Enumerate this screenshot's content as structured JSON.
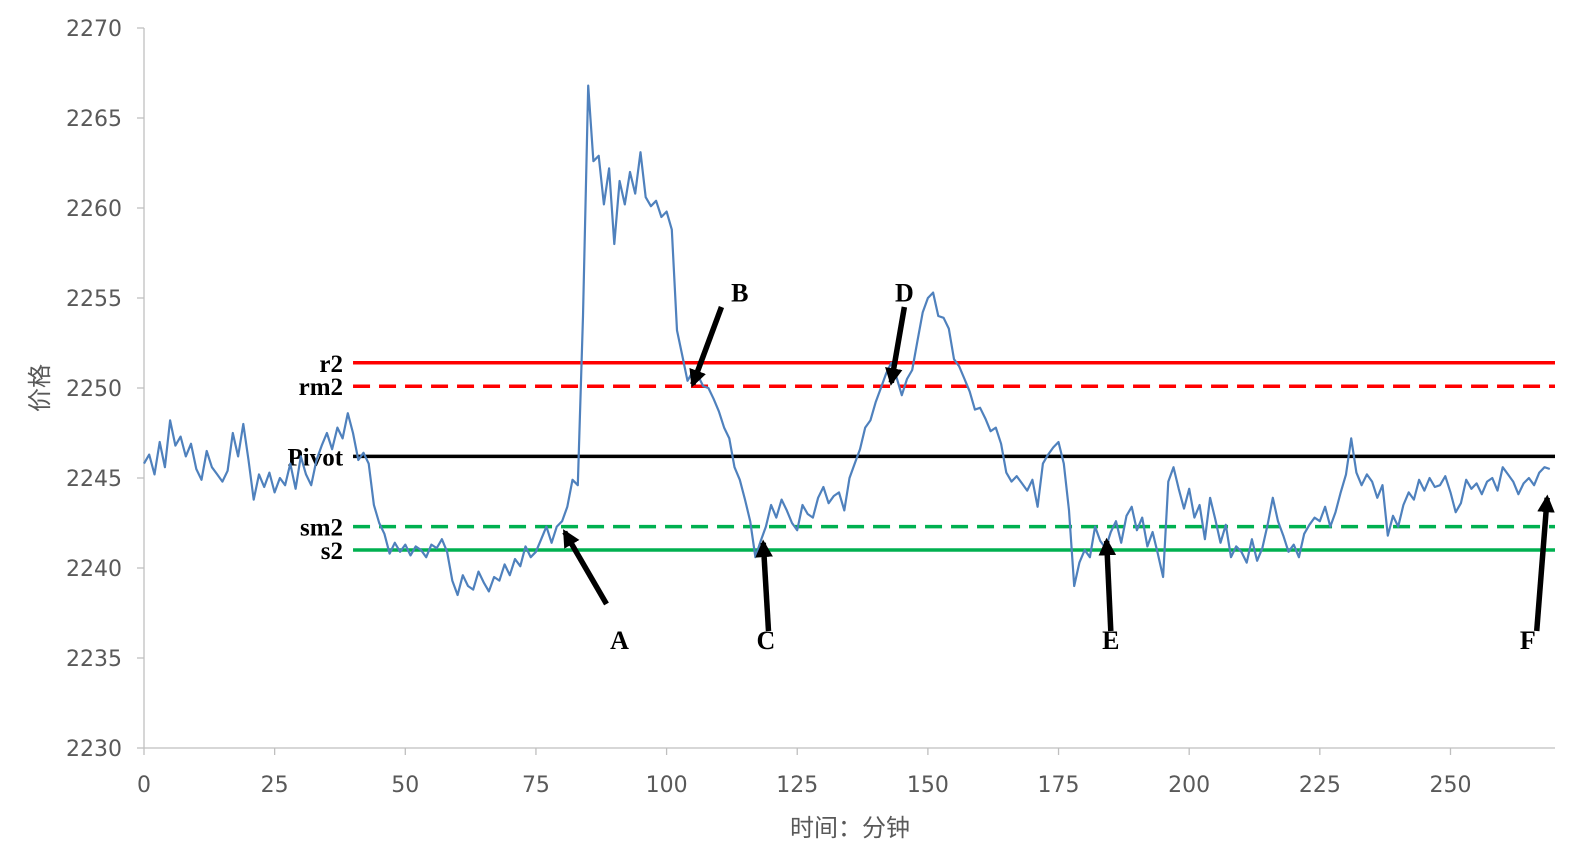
{
  "chart_data": {
    "type": "line",
    "title": "",
    "xlabel": "时间：分钟",
    "ylabel": "价格",
    "xlim": [
      0,
      270
    ],
    "ylim": [
      2230,
      2270
    ],
    "xticks": [
      0,
      25,
      50,
      75,
      100,
      125,
      150,
      175,
      200,
      225,
      250
    ],
    "xtick_labels": [
      "0",
      "25",
      "50",
      "75",
      "100",
      "125",
      "150",
      "175",
      "200",
      "225",
      "250"
    ],
    "yticks": [
      2230,
      2235,
      2240,
      2245,
      2250,
      2255,
      2260,
      2265,
      2270
    ],
    "ytick_labels": [
      "2230",
      "2235",
      "2240",
      "2245",
      "2250",
      "2255",
      "2260",
      "2265",
      "2270"
    ],
    "grid": false,
    "series": [
      {
        "color": "#4f81bd",
        "points": [
          [
            0,
            2245.8
          ],
          [
            1,
            2246.3
          ],
          [
            2,
            2245.2
          ],
          [
            3,
            2247.0
          ],
          [
            4,
            2245.6
          ],
          [
            5,
            2248.2
          ],
          [
            6,
            2246.8
          ],
          [
            7,
            2247.3
          ],
          [
            8,
            2246.2
          ],
          [
            9,
            2246.9
          ],
          [
            10,
            2245.5
          ],
          [
            11,
            2244.9
          ],
          [
            12,
            2246.5
          ],
          [
            13,
            2245.6
          ],
          [
            14,
            2245.2
          ],
          [
            15,
            2244.8
          ],
          [
            16,
            2245.4
          ],
          [
            17,
            2247.5
          ],
          [
            18,
            2246.2
          ],
          [
            19,
            2248.0
          ],
          [
            20,
            2246.0
          ],
          [
            21,
            2243.8
          ],
          [
            22,
            2245.2
          ],
          [
            23,
            2244.5
          ],
          [
            24,
            2245.3
          ],
          [
            25,
            2244.2
          ],
          [
            26,
            2245.0
          ],
          [
            27,
            2244.6
          ],
          [
            28,
            2245.8
          ],
          [
            29,
            2244.4
          ],
          [
            30,
            2246.2
          ],
          [
            31,
            2245.2
          ],
          [
            32,
            2244.6
          ],
          [
            33,
            2246.0
          ],
          [
            34,
            2246.8
          ],
          [
            35,
            2247.5
          ],
          [
            36,
            2246.6
          ],
          [
            37,
            2247.8
          ],
          [
            38,
            2247.2
          ],
          [
            39,
            2248.6
          ],
          [
            40,
            2247.5
          ],
          [
            41,
            2246.0
          ],
          [
            42,
            2246.4
          ],
          [
            43,
            2245.8
          ],
          [
            44,
            2243.5
          ],
          [
            45,
            2242.5
          ],
          [
            46,
            2241.9
          ],
          [
            47,
            2240.8
          ],
          [
            48,
            2241.4
          ],
          [
            49,
            2240.9
          ],
          [
            50,
            2241.3
          ],
          [
            51,
            2240.7
          ],
          [
            52,
            2241.2
          ],
          [
            53,
            2241.0
          ],
          [
            54,
            2240.6
          ],
          [
            55,
            2241.3
          ],
          [
            56,
            2241.1
          ],
          [
            57,
            2241.6
          ],
          [
            58,
            2240.9
          ],
          [
            59,
            2239.3
          ],
          [
            60,
            2238.5
          ],
          [
            61,
            2239.6
          ],
          [
            62,
            2239.0
          ],
          [
            63,
            2238.8
          ],
          [
            64,
            2239.8
          ],
          [
            65,
            2239.2
          ],
          [
            66,
            2238.7
          ],
          [
            67,
            2239.5
          ],
          [
            68,
            2239.3
          ],
          [
            69,
            2240.2
          ],
          [
            70,
            2239.6
          ],
          [
            71,
            2240.5
          ],
          [
            72,
            2240.1
          ],
          [
            73,
            2241.2
          ],
          [
            74,
            2240.6
          ],
          [
            75,
            2240.9
          ],
          [
            76,
            2241.6
          ],
          [
            77,
            2242.3
          ],
          [
            78,
            2241.4
          ],
          [
            79,
            2242.3
          ],
          [
            80,
            2242.6
          ],
          [
            81,
            2243.4
          ],
          [
            82,
            2244.9
          ],
          [
            83,
            2244.6
          ],
          [
            84,
            2254.0
          ],
          [
            85,
            2266.8
          ],
          [
            86,
            2262.6
          ],
          [
            87,
            2262.9
          ],
          [
            88,
            2260.2
          ],
          [
            89,
            2262.2
          ],
          [
            90,
            2258.0
          ],
          [
            91,
            2261.5
          ],
          [
            92,
            2260.2
          ],
          [
            93,
            2262.0
          ],
          [
            94,
            2260.8
          ],
          [
            95,
            2263.1
          ],
          [
            96,
            2260.6
          ],
          [
            97,
            2260.1
          ],
          [
            98,
            2260.4
          ],
          [
            99,
            2259.5
          ],
          [
            100,
            2259.8
          ],
          [
            101,
            2258.8
          ],
          [
            102,
            2253.2
          ],
          [
            103,
            2251.8
          ],
          [
            104,
            2250.4
          ],
          [
            105,
            2250.9
          ],
          [
            106,
            2250.7
          ],
          [
            107,
            2250.1
          ],
          [
            108,
            2250.0
          ],
          [
            109,
            2249.4
          ],
          [
            110,
            2248.7
          ],
          [
            111,
            2247.8
          ],
          [
            112,
            2247.2
          ],
          [
            113,
            2245.6
          ],
          [
            114,
            2244.9
          ],
          [
            115,
            2243.8
          ],
          [
            116,
            2242.6
          ],
          [
            117,
            2240.6
          ],
          [
            118,
            2241.5
          ],
          [
            119,
            2242.3
          ],
          [
            120,
            2243.5
          ],
          [
            121,
            2242.8
          ],
          [
            122,
            2243.8
          ],
          [
            123,
            2243.2
          ],
          [
            124,
            2242.5
          ],
          [
            125,
            2242.1
          ],
          [
            126,
            2243.5
          ],
          [
            127,
            2243.0
          ],
          [
            128,
            2242.8
          ],
          [
            129,
            2243.9
          ],
          [
            130,
            2244.5
          ],
          [
            131,
            2243.6
          ],
          [
            132,
            2244.0
          ],
          [
            133,
            2244.2
          ],
          [
            134,
            2243.2
          ],
          [
            135,
            2245.0
          ],
          [
            136,
            2245.8
          ],
          [
            137,
            2246.6
          ],
          [
            138,
            2247.8
          ],
          [
            139,
            2248.2
          ],
          [
            140,
            2249.2
          ],
          [
            141,
            2250.0
          ],
          [
            142,
            2250.8
          ],
          [
            143,
            2251.4
          ],
          [
            144,
            2250.6
          ],
          [
            145,
            2249.6
          ],
          [
            146,
            2250.5
          ],
          [
            147,
            2251.0
          ],
          [
            148,
            2252.6
          ],
          [
            149,
            2254.2
          ],
          [
            150,
            2255.0
          ],
          [
            151,
            2255.3
          ],
          [
            152,
            2254.0
          ],
          [
            153,
            2253.9
          ],
          [
            154,
            2253.3
          ],
          [
            155,
            2251.6
          ],
          [
            156,
            2251.2
          ],
          [
            157,
            2250.5
          ],
          [
            158,
            2249.8
          ],
          [
            159,
            2248.8
          ],
          [
            160,
            2248.9
          ],
          [
            161,
            2248.3
          ],
          [
            162,
            2247.6
          ],
          [
            163,
            2247.8
          ],
          [
            164,
            2246.9
          ],
          [
            165,
            2245.3
          ],
          [
            166,
            2244.8
          ],
          [
            167,
            2245.1
          ],
          [
            168,
            2244.7
          ],
          [
            169,
            2244.3
          ],
          [
            170,
            2244.9
          ],
          [
            171,
            2243.4
          ],
          [
            172,
            2245.8
          ],
          [
            173,
            2246.3
          ],
          [
            174,
            2246.7
          ],
          [
            175,
            2247.0
          ],
          [
            176,
            2245.8
          ],
          [
            177,
            2243.2
          ],
          [
            178,
            2239.0
          ],
          [
            179,
            2240.3
          ],
          [
            180,
            2241.0
          ],
          [
            181,
            2240.6
          ],
          [
            182,
            2242.3
          ],
          [
            183,
            2241.5
          ],
          [
            184,
            2241.1
          ],
          [
            185,
            2242.0
          ],
          [
            186,
            2242.6
          ],
          [
            187,
            2241.4
          ],
          [
            188,
            2242.9
          ],
          [
            189,
            2243.4
          ],
          [
            190,
            2242.1
          ],
          [
            191,
            2242.8
          ],
          [
            192,
            2241.2
          ],
          [
            193,
            2242.0
          ],
          [
            194,
            2240.8
          ],
          [
            195,
            2239.5
          ],
          [
            196,
            2244.8
          ],
          [
            197,
            2245.6
          ],
          [
            198,
            2244.4
          ],
          [
            199,
            2243.3
          ],
          [
            200,
            2244.4
          ],
          [
            201,
            2242.8
          ],
          [
            202,
            2243.5
          ],
          [
            203,
            2241.6
          ],
          [
            204,
            2243.9
          ],
          [
            205,
            2242.7
          ],
          [
            206,
            2241.4
          ],
          [
            207,
            2242.4
          ],
          [
            208,
            2240.6
          ],
          [
            209,
            2241.2
          ],
          [
            210,
            2240.9
          ],
          [
            211,
            2240.3
          ],
          [
            212,
            2241.6
          ],
          [
            213,
            2240.4
          ],
          [
            214,
            2241.1
          ],
          [
            215,
            2242.4
          ],
          [
            216,
            2243.9
          ],
          [
            217,
            2242.6
          ],
          [
            218,
            2241.8
          ],
          [
            219,
            2240.9
          ],
          [
            220,
            2241.3
          ],
          [
            221,
            2240.6
          ],
          [
            222,
            2241.9
          ],
          [
            223,
            2242.4
          ],
          [
            224,
            2242.8
          ],
          [
            225,
            2242.6
          ],
          [
            226,
            2243.4
          ],
          [
            227,
            2242.3
          ],
          [
            228,
            2243.1
          ],
          [
            229,
            2244.2
          ],
          [
            230,
            2245.2
          ],
          [
            231,
            2247.2
          ],
          [
            232,
            2245.3
          ],
          [
            233,
            2244.6
          ],
          [
            234,
            2245.2
          ],
          [
            235,
            2244.8
          ],
          [
            236,
            2243.9
          ],
          [
            237,
            2244.6
          ],
          [
            238,
            2241.8
          ],
          [
            239,
            2242.9
          ],
          [
            240,
            2242.3
          ],
          [
            241,
            2243.5
          ],
          [
            242,
            2244.2
          ],
          [
            243,
            2243.8
          ],
          [
            244,
            2244.9
          ],
          [
            245,
            2244.3
          ],
          [
            246,
            2245.0
          ],
          [
            247,
            2244.5
          ],
          [
            248,
            2244.6
          ],
          [
            249,
            2245.1
          ],
          [
            250,
            2244.2
          ],
          [
            251,
            2243.1
          ],
          [
            252,
            2243.6
          ],
          [
            253,
            2244.9
          ],
          [
            254,
            2244.4
          ],
          [
            255,
            2244.7
          ],
          [
            256,
            2244.1
          ],
          [
            257,
            2244.8
          ],
          [
            258,
            2245.0
          ],
          [
            259,
            2244.3
          ],
          [
            260,
            2245.6
          ],
          [
            261,
            2245.2
          ],
          [
            262,
            2244.8
          ],
          [
            263,
            2244.1
          ],
          [
            264,
            2244.7
          ],
          [
            265,
            2245.0
          ],
          [
            266,
            2244.6
          ],
          [
            267,
            2245.3
          ],
          [
            268,
            2245.6
          ],
          [
            269,
            2245.5
          ]
        ]
      }
    ],
    "reference_lines": [
      {
        "label": "r2",
        "y": 2251.4,
        "color": "#ff0000",
        "style": "solid",
        "x_start": 40
      },
      {
        "label": "rm2",
        "y": 2250.1,
        "color": "#ff0000",
        "style": "dashed",
        "x_start": 40
      },
      {
        "label": "Pivot",
        "y": 2246.2,
        "color": "#000000",
        "style": "solid",
        "x_start": 40
      },
      {
        "label": "sm2",
        "y": 2242.3,
        "color": "#00b050",
        "style": "dashed",
        "x_start": 40
      },
      {
        "label": "s2",
        "y": 2241.0,
        "color": "#00b050",
        "style": "solid",
        "x_start": 40
      }
    ],
    "annotations": [
      {
        "label": "A",
        "tip": [
          80.5,
          2242.0
        ],
        "tail": [
          88.5,
          2238.0
        ],
        "label_at": [
          91,
          2236.0
        ]
      },
      {
        "label": "B",
        "tip": [
          105,
          2250.2
        ],
        "tail": [
          110.5,
          2254.5
        ],
        "label_at": [
          114,
          2255.3
        ]
      },
      {
        "label": "C",
        "tip": [
          118.5,
          2241.4
        ],
        "tail": [
          119.5,
          2236.5
        ],
        "label_at": [
          119,
          2236.0
        ]
      },
      {
        "label": "D",
        "tip": [
          143,
          2250.3
        ],
        "tail": [
          145.5,
          2254.5
        ],
        "label_at": [
          145.5,
          2255.3
        ]
      },
      {
        "label": "E",
        "tip": [
          184.2,
          2241.5
        ],
        "tail": [
          185,
          2236.5
        ],
        "label_at": [
          185,
          2236.0
        ]
      },
      {
        "label": "F",
        "tip": [
          268.5,
          2243.9
        ],
        "tail": [
          266.5,
          2236.5
        ],
        "label_at": [
          264.8,
          2236.0
        ]
      }
    ]
  }
}
